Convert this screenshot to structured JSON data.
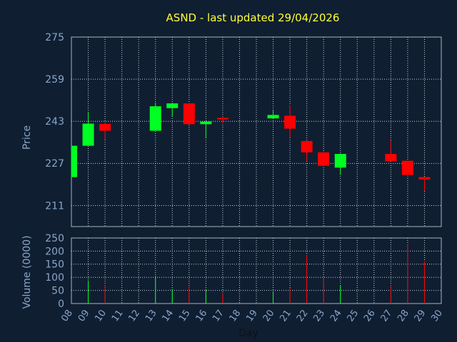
{
  "chart_data": {
    "type": "candlestick",
    "title": "ASND - last updated 29/04/2026",
    "xlabel": "Day",
    "price_panel": {
      "ylabel": "Price",
      "ylim": [
        203,
        275
      ],
      "yticks": [
        275,
        259,
        243,
        227,
        211
      ]
    },
    "volume_panel": {
      "ylabel": "Volume (0000)",
      "ylim": [
        0,
        250
      ],
      "yticks": [
        250,
        200,
        150,
        100,
        50,
        0
      ]
    },
    "days": [
      "08",
      "09",
      "10",
      "11",
      "12",
      "13",
      "14",
      "15",
      "16",
      "17",
      "18",
      "19",
      "20",
      "21",
      "22",
      "23",
      "24",
      "25",
      "26",
      "27",
      "28",
      "29",
      "30"
    ],
    "candles": [
      {
        "day": "08",
        "open": 221.8,
        "close": 233.7,
        "high": 233.7,
        "low": 221.8,
        "volume": 0
      },
      {
        "day": "09",
        "open": 233.7,
        "close": 242.1,
        "high": 246.6,
        "low": 233.7,
        "volume": 88
      },
      {
        "day": "10",
        "open": 242.0,
        "close": 239.4,
        "high": 242.6,
        "low": 236.0,
        "volume": 70
      },
      {
        "day": "13",
        "open": 239.4,
        "close": 248.7,
        "high": 250.0,
        "low": 239.4,
        "volume": 105
      },
      {
        "day": "14",
        "open": 248.0,
        "close": 249.8,
        "high": 250.0,
        "low": 244.8,
        "volume": 55
      },
      {
        "day": "15",
        "open": 249.8,
        "close": 241.9,
        "high": 249.8,
        "low": 241.9,
        "volume": 65
      },
      {
        "day": "16",
        "open": 241.9,
        "close": 242.9,
        "high": 242.9,
        "low": 236.5,
        "volume": 55
      },
      {
        "day": "17",
        "open": 244.3,
        "close": 244.1,
        "high": 244.8,
        "low": 242.3,
        "volume": 40
      },
      {
        "day": "20",
        "open": 244.1,
        "close": 245.4,
        "high": 247.0,
        "low": 244.1,
        "volume": 45
      },
      {
        "day": "21",
        "open": 245.1,
        "close": 240.2,
        "high": 249.0,
        "low": 236.8,
        "volume": 60
      },
      {
        "day": "22",
        "open": 235.5,
        "close": 231.2,
        "high": 235.5,
        "low": 227.8,
        "volume": 185
      },
      {
        "day": "23",
        "open": 231.2,
        "close": 226.1,
        "high": 231.2,
        "low": 226.1,
        "volume": 90
      },
      {
        "day": "24",
        "open": 225.4,
        "close": 230.6,
        "high": 230.6,
        "low": 222.6,
        "volume": 70
      },
      {
        "day": "27",
        "open": 230.6,
        "close": 227.8,
        "high": 235.8,
        "low": 227.8,
        "volume": 70
      },
      {
        "day": "28",
        "open": 228.0,
        "close": 222.6,
        "high": 228.0,
        "low": 221.8,
        "volume": 225
      },
      {
        "day": "29",
        "open": 221.8,
        "close": 220.9,
        "high": 221.8,
        "low": 216.6,
        "volume": 160
      }
    ]
  }
}
